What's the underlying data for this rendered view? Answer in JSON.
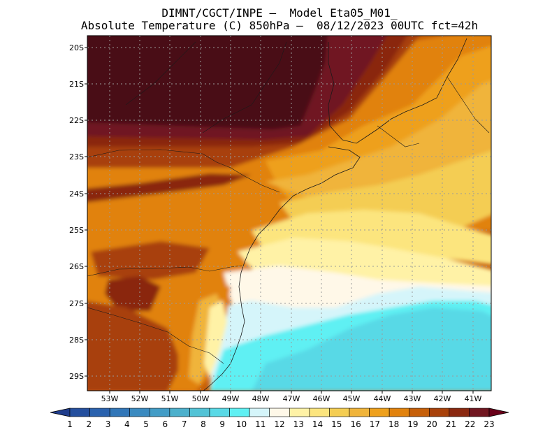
{
  "header": {
    "line1": "DIMNT/CGCT/INPE –  Model Eta05_M01_",
    "line2": "Absolute Temperature (C) 850hPa –  08/12/2023 00UTC fct=42h"
  },
  "map": {
    "lat_labels": [
      "20S",
      "21S",
      "22S",
      "23S",
      "24S",
      "25S",
      "26S",
      "27S",
      "28S",
      "29S"
    ],
    "lon_labels": [
      "53W",
      "52W",
      "51W",
      "50W",
      "49W",
      "48W",
      "47W",
      "46W",
      "45W",
      "44W",
      "43W",
      "42W",
      "41W"
    ]
  },
  "colorbar": {
    "labels": [
      "1",
      "2",
      "3",
      "4",
      "5",
      "6",
      "7",
      "8",
      "9",
      "10",
      "11",
      "12",
      "13",
      "14",
      "15",
      "16",
      "17",
      "18",
      "19",
      "20",
      "21",
      "22",
      "23"
    ],
    "colors": [
      "#1f3c8c",
      "#244f9e",
      "#2a62ae",
      "#3176b8",
      "#3a8ac0",
      "#429cc6",
      "#4cb0cc",
      "#52c3d6",
      "#59d9e6",
      "#5ff0f3",
      "#d5f5fa",
      "#fff8e8",
      "#fff2a6",
      "#fce57e",
      "#f4cd52",
      "#f0b43a",
      "#eea01c",
      "#e1820d",
      "#c65f09",
      "#a8410a",
      "#8a2810",
      "#701620",
      "#690019"
    ],
    "grid_color": "#9a9a9a"
  }
}
